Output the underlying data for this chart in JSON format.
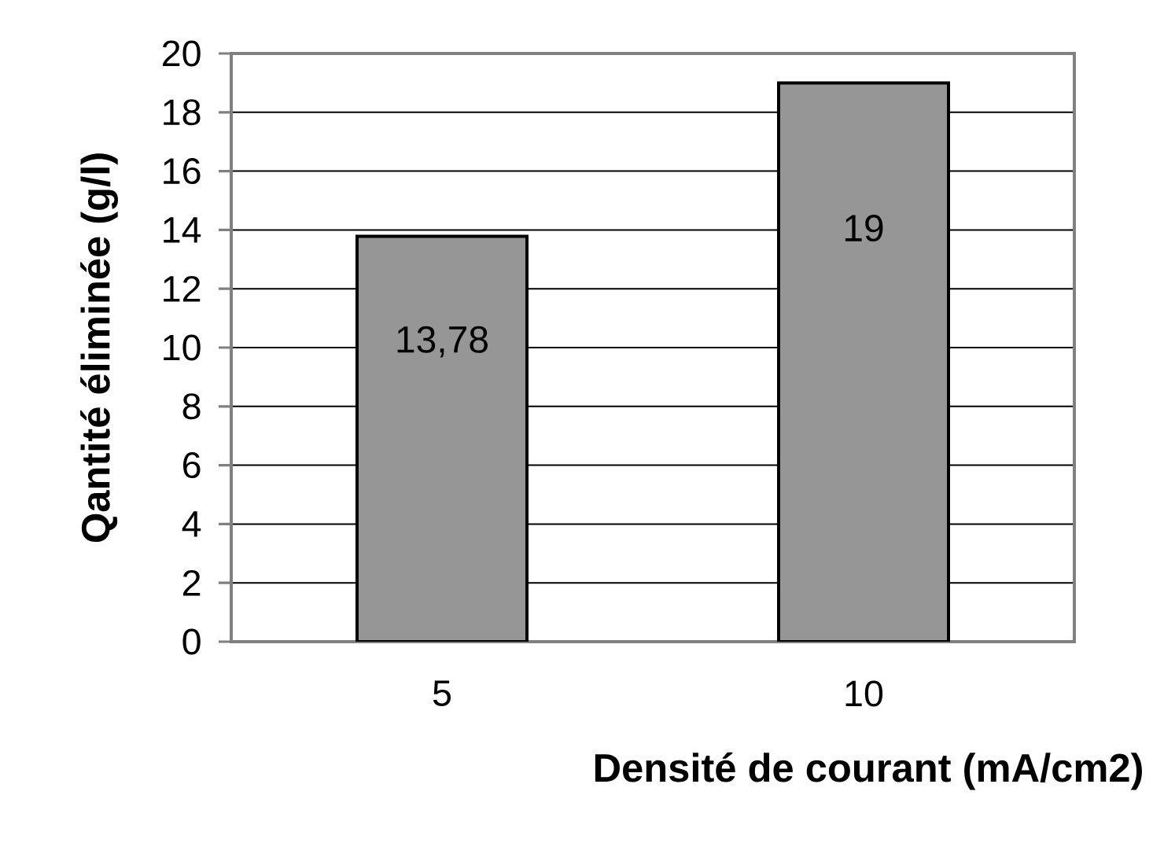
{
  "chart_data": {
    "type": "bar",
    "xlabel": "Densité de courant (mA/cm2)",
    "ylabel": "Qantité éliminée (g/l)",
    "categories": [
      "5",
      "10"
    ],
    "values": [
      13.78,
      19
    ],
    "value_labels": [
      "13,78",
      "19"
    ],
    "color": "#969696",
    "ylim": [
      0,
      20
    ],
    "yticks": [
      0,
      2,
      4,
      6,
      8,
      10,
      12,
      14,
      16,
      18,
      20
    ],
    "grid": "y"
  }
}
